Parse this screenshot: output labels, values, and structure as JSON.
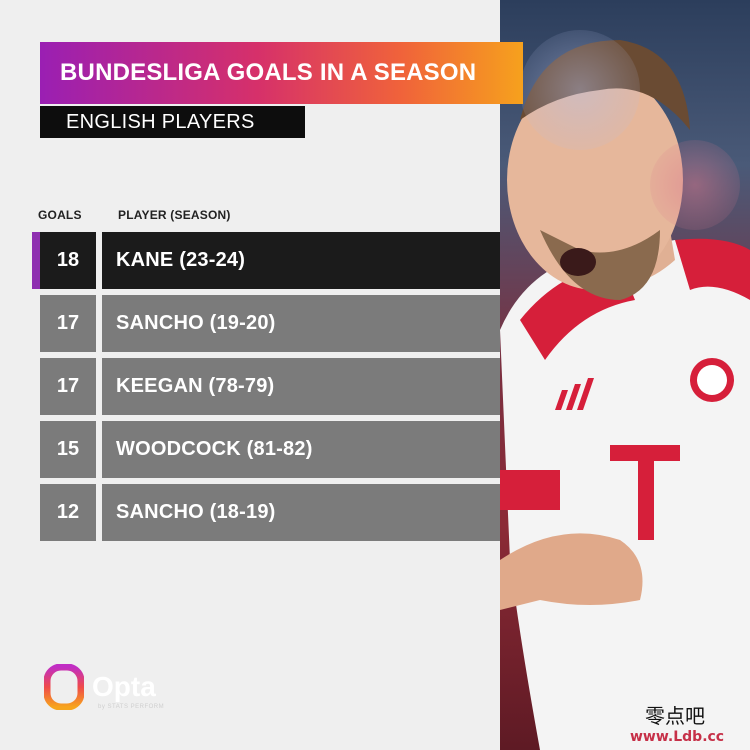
{
  "title": "BUNDESLIGA GOALS IN A SEASON",
  "subtitle": "ENGLISH PLAYERS",
  "table": {
    "headers": {
      "goals": "GOALS",
      "player": "PLAYER (SEASON)"
    },
    "rows": [
      {
        "goals": "18",
        "player": "KANE (23-24)",
        "highlight": true
      },
      {
        "goals": "17",
        "player": "SANCHO (19-20)",
        "highlight": false
      },
      {
        "goals": "17",
        "player": "KEEGAN (78-79)",
        "highlight": false
      },
      {
        "goals": "15",
        "player": "WOODCOCK (81-82)",
        "highlight": false
      },
      {
        "goals": "12",
        "player": "SANCHO (18-19)",
        "highlight": false
      }
    ]
  },
  "logo": {
    "word": "Opta",
    "sub": "by STATS PERFORM"
  },
  "watermark": {
    "cn": "零点吧",
    "url": "www.Ldb.cc"
  },
  "colors": {
    "highlight_row": "#1b1b1b",
    "normal_row": "#7b7b7b",
    "accent": "#8e2fb0",
    "title_gradient_start": "#9a1fb3",
    "title_gradient_end": "#f6a11d"
  }
}
